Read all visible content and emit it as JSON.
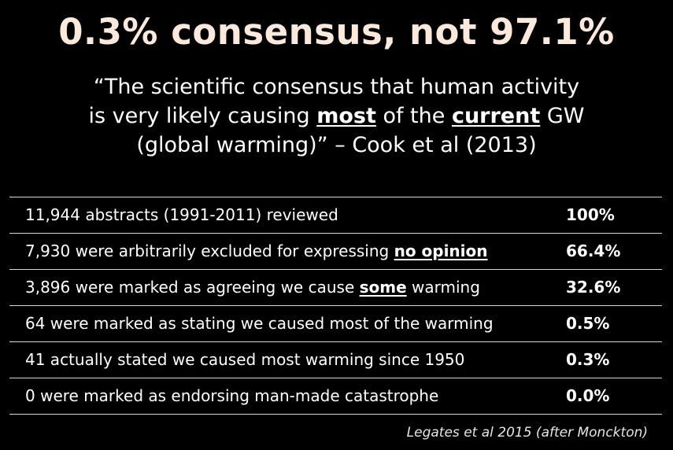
{
  "title": "0.3% consensus, not 97.1%",
  "quote": {
    "line1": "“The scientific consensus that human activity",
    "line2_pre": "is very likely causing ",
    "line2_em1": "most",
    "line2_mid": " of the ",
    "line2_em2": "current",
    "line2_post": " GW",
    "line3": "(global warming)” – Cook et al (2013)"
  },
  "rows": [
    {
      "text": "11,944 abstracts (1991-2011) reviewed",
      "percent": "100%"
    },
    {
      "text_pre": "7,930 were arbitrarily excluded for expressing ",
      "text_em": "no opinion",
      "text_post": "",
      "percent": "66.4%"
    },
    {
      "text_pre": "3,896 were marked as agreeing we cause ",
      "text_em": "some",
      "text_post": " warming",
      "percent": "32.6%"
    },
    {
      "text": "64 were marked as stating we caused most of the warming",
      "percent": "0.5%"
    },
    {
      "text": "41 actually stated we caused most warming since 1950",
      "percent": "0.3%"
    },
    {
      "text": "0 were marked as endorsing man-made catastrophe",
      "percent": "0.0%"
    }
  ],
  "source": "Legates et al 2015  (after Monckton)",
  "colors": {
    "background": "#000000",
    "title": "#fde9dc",
    "text": "#ffffff",
    "rule": "#d8d8d8"
  }
}
